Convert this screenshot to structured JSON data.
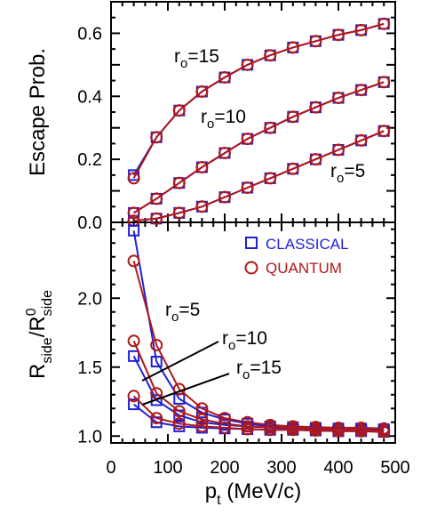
{
  "colors": {
    "classical": "#1f1fd6",
    "quantum": "#b01818",
    "axis": "#000000"
  },
  "chart_data": [
    {
      "type": "line",
      "panel": "top",
      "xlim": [
        0,
        500
      ],
      "ylim": [
        0,
        0.7
      ],
      "ylabel": "Escape Prob.",
      "ytick_labels": [
        "0.0",
        "0.2",
        "0.4",
        "0.6"
      ],
      "ytick_values": [
        0,
        0.2,
        0.4,
        0.6
      ],
      "grid": false,
      "annotations": [
        "r0=15",
        "r0=10",
        "r0=5"
      ],
      "x": [
        40,
        80,
        120,
        160,
        200,
        240,
        280,
        320,
        360,
        400,
        440,
        480
      ],
      "series": [
        {
          "name": "",
          "group": "r0=15",
          "marker": "square",
          "values": [
            0.15,
            0.27,
            0.355,
            0.415,
            0.46,
            0.5,
            0.53,
            0.555,
            0.575,
            0.595,
            0.61,
            0.63
          ]
        },
        {
          "name": "",
          "group": "r0=15",
          "marker": "circle",
          "values": [
            0.14,
            0.27,
            0.355,
            0.415,
            0.46,
            0.5,
            0.53,
            0.555,
            0.575,
            0.595,
            0.61,
            0.63
          ]
        },
        {
          "name": "",
          "group": "r0=10",
          "marker": "square",
          "values": [
            0.03,
            0.075,
            0.125,
            0.175,
            0.22,
            0.265,
            0.3,
            0.335,
            0.365,
            0.395,
            0.42,
            0.445
          ]
        },
        {
          "name": "",
          "group": "r0=10",
          "marker": "circle",
          "values": [
            0.03,
            0.075,
            0.125,
            0.175,
            0.22,
            0.265,
            0.3,
            0.335,
            0.365,
            0.395,
            0.42,
            0.445
          ]
        },
        {
          "name": "",
          "group": "r0=5",
          "marker": "square",
          "values": [
            0.005,
            0.012,
            0.03,
            0.05,
            0.08,
            0.11,
            0.14,
            0.17,
            0.2,
            0.23,
            0.26,
            0.29
          ]
        },
        {
          "name": "",
          "group": "r0=5",
          "marker": "circle",
          "values": [
            0.005,
            0.012,
            0.03,
            0.05,
            0.08,
            0.11,
            0.14,
            0.17,
            0.2,
            0.23,
            0.26,
            0.29
          ]
        }
      ]
    },
    {
      "type": "line",
      "panel": "bottom",
      "xlim": [
        0,
        500
      ],
      "ylim": [
        0.95,
        2.55
      ],
      "xlabel": "p_t (MeV/c)",
      "xlabel_main": "p",
      "xlabel_sub": "t",
      "xlabel_rest": " (MeV/c)",
      "ylabel": "R_side/R^0_side",
      "ylabel_parts": {
        "r": "R",
        "side": "side",
        "slash": "/R",
        "zero": "0"
      },
      "xtick_labels": [
        "0",
        "100",
        "200",
        "300",
        "400",
        "500"
      ],
      "xtick_values": [
        0,
        100,
        200,
        300,
        400,
        500
      ],
      "ytick_labels": [
        "1.0",
        "1.5",
        "2.0"
      ],
      "ytick_values": [
        1.0,
        1.5,
        2.0
      ],
      "grid": false,
      "legend": {
        "position": "top-right",
        "entries": [
          "CLASSICAL",
          "QUANTUM"
        ]
      },
      "annotations": [
        "r0=5",
        "r0=10",
        "r0=15"
      ],
      "x": [
        40,
        80,
        120,
        160,
        200,
        240,
        280,
        320,
        360,
        400,
        440,
        480
      ],
      "series": [
        {
          "name": "CLASSICAL",
          "group": "r0=5",
          "marker": "square",
          "values": [
            2.49,
            1.54,
            1.27,
            1.17,
            1.12,
            1.09,
            1.07,
            1.065,
            1.06,
            1.055,
            1.055,
            1.05
          ]
        },
        {
          "name": "QUANTUM",
          "group": "r0=5",
          "marker": "circle",
          "values": [
            2.27,
            1.66,
            1.34,
            1.2,
            1.13,
            1.1,
            1.08,
            1.07,
            1.065,
            1.06,
            1.06,
            1.055
          ]
        },
        {
          "name": "CLASSICAL",
          "group": "r0=10",
          "marker": "square",
          "values": [
            1.58,
            1.26,
            1.15,
            1.1,
            1.08,
            1.07,
            1.06,
            1.055,
            1.05,
            1.05,
            1.045,
            1.04
          ]
        },
        {
          "name": "QUANTUM",
          "group": "r0=10",
          "marker": "circle",
          "values": [
            1.69,
            1.31,
            1.18,
            1.12,
            1.09,
            1.07,
            1.065,
            1.06,
            1.055,
            1.05,
            1.045,
            1.04
          ]
        },
        {
          "name": "CLASSICAL",
          "group": "r0=15",
          "marker": "square",
          "values": [
            1.23,
            1.1,
            1.07,
            1.06,
            1.055,
            1.05,
            1.045,
            1.045,
            1.04,
            1.035,
            1.035,
            1.03
          ]
        },
        {
          "name": "QUANTUM",
          "group": "r0=15",
          "marker": "circle",
          "values": [
            1.29,
            1.13,
            1.09,
            1.07,
            1.06,
            1.05,
            1.045,
            1.045,
            1.04,
            1.035,
            1.035,
            1.03
          ]
        }
      ]
    }
  ]
}
